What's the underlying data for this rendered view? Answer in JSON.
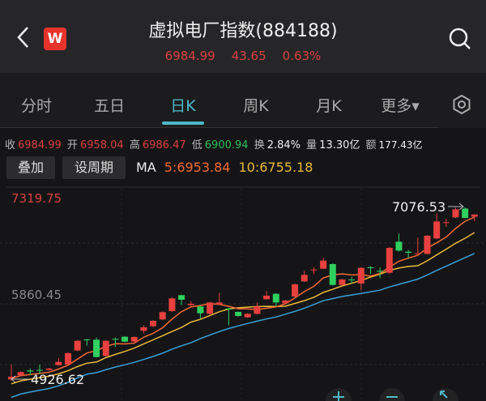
{
  "header": {
    "title": "虚拟电厂指数(884188)",
    "price": "6984.99",
    "change": "43.65",
    "change_pct": "0.63%",
    "logo_letter": "W"
  },
  "tabs": [
    {
      "label": "分时"
    },
    {
      "label": "五日"
    },
    {
      "label": "日K",
      "active": true
    },
    {
      "label": "周K"
    },
    {
      "label": "月K"
    },
    {
      "label": "更多▾"
    }
  ],
  "stats": {
    "close_label": "收",
    "close": "6984.99",
    "open_label": "开",
    "open": "6958.04",
    "high_label": "高",
    "high": "6986.47",
    "low_label": "低",
    "low": "6900.94",
    "turnover_label": "换",
    "turnover": "2.84%",
    "volume_label": "量",
    "volume": "13.30亿",
    "amount_label": "额",
    "amount": "177.43亿"
  },
  "buttons": {
    "overlay": "叠加",
    "set_period": "设周期"
  },
  "ma": {
    "label": "MA",
    "ma5": "5:6953.84",
    "ma10": "10:6755.18"
  },
  "colors": {
    "up": "#e8403e",
    "down": "#2fd05e",
    "ma5": "#f06a34",
    "ma10": "#e9b93a",
    "ma20": "#3aa0d8",
    "accent": "#4fb8c8"
  },
  "chart_data": {
    "type": "candlestick",
    "axis_labels": {
      "top": "7319.75",
      "mid": "5860.45"
    },
    "ylim": [
      4260,
      7319.75
    ],
    "annotations": {
      "max": "7076.53",
      "min": "4926.62"
    },
    "ohlc": [
      [
        4909,
        5096,
        4892,
        4943
      ],
      [
        4960,
        5010,
        4950,
        5001
      ],
      [
        5021,
        5045,
        4960,
        5008
      ],
      [
        5028,
        5096,
        4977,
        5018
      ],
      [
        5028,
        5055,
        5020,
        5045
      ],
      [
        5089,
        5181,
        5080,
        5130
      ],
      [
        5096,
        5250,
        5090,
        5239
      ],
      [
        5273,
        5405,
        5265,
        5395
      ],
      [
        5412,
        5419,
        5334,
        5402
      ],
      [
        5409,
        5436,
        5185,
        5191
      ],
      [
        5205,
        5400,
        5195,
        5395
      ],
      [
        5419,
        5436,
        5317,
        5409
      ],
      [
        5446,
        5455,
        5375,
        5385
      ],
      [
        5385,
        5450,
        5375,
        5443
      ],
      [
        5521,
        5589,
        5487,
        5565
      ],
      [
        5579,
        5655,
        5570,
        5647
      ],
      [
        5664,
        5765,
        5655,
        5756
      ],
      [
        5769,
        5940,
        5760,
        5929
      ],
      [
        5970,
        5975,
        5844,
        5912
      ],
      [
        5844,
        5895,
        5810,
        5861
      ],
      [
        5827,
        5835,
        5674,
        5742
      ],
      [
        5735,
        5885,
        5725,
        5878
      ],
      [
        5854,
        5997,
        5844,
        5878
      ],
      [
        5800,
        5810,
        5589,
        5790
      ],
      [
        5759,
        5765,
        5700,
        5708
      ],
      [
        5691,
        5745,
        5685,
        5735
      ],
      [
        5735,
        5878,
        5725,
        5827
      ],
      [
        5919,
        6021,
        5910,
        5963
      ],
      [
        5987,
        5995,
        5827,
        5878
      ],
      [
        5868,
        5910,
        5860,
        5902
      ],
      [
        5953,
        6115,
        5945,
        6106
      ],
      [
        6143,
        6279,
        6135,
        6225
      ],
      [
        6286,
        6320,
        6235,
        6293
      ],
      [
        6303,
        6439,
        6295,
        6405
      ],
      [
        6361,
        6370,
        6090,
        6099
      ],
      [
        6099,
        6175,
        6090,
        6167
      ],
      [
        6167,
        6201,
        6116,
        6157
      ],
      [
        6116,
        6320,
        6031,
        6313
      ],
      [
        6320,
        6337,
        6235,
        6310
      ],
      [
        6276,
        6320,
        6184,
        6266
      ],
      [
        6252,
        6575,
        6235,
        6565
      ],
      [
        6643,
        6745,
        6520,
        6531
      ],
      [
        6517,
        6541,
        6439,
        6504
      ],
      [
        6490,
        6694,
        6485,
        6497
      ],
      [
        6490,
        6725,
        6480,
        6718
      ],
      [
        6684,
        7000,
        6675,
        6898
      ],
      [
        6878,
        6932,
        6830,
        6888
      ],
      [
        6949,
        7070,
        6940,
        7050
      ],
      [
        7060,
        7076.53,
        6935,
        6941.34
      ],
      [
        6958.04,
        6986.47,
        6900.94,
        6984.99
      ]
    ]
  },
  "icons": {
    "back": "chevron-left-icon",
    "search": "search-icon",
    "settings": "hexagon-settings-icon",
    "zoom_in": "plus-icon",
    "zoom_out": "minus-icon",
    "expand": "expand-icon"
  }
}
